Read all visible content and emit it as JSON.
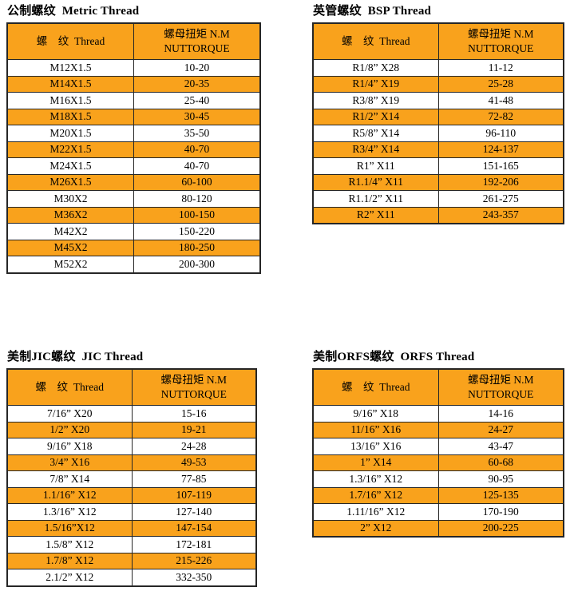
{
  "colors": {
    "row_highlight": "#F9A21C",
    "header_background": "#F9A21C",
    "border": "#262626",
    "text": "#000000",
    "page_background": "#ffffff"
  },
  "tables": [
    {
      "id": "metric",
      "title": "公制螺纹  Metric Thread",
      "columns": {
        "thread": "螺　纹  Thread",
        "torque_line1": "螺母扭矩 N.M",
        "torque_line2": "NUTTORQUE"
      },
      "rows": [
        [
          "M12X1.5",
          "10-20"
        ],
        [
          "M14X1.5",
          "20-35"
        ],
        [
          "M16X1.5",
          "25-40"
        ],
        [
          "M18X1.5",
          "30-45"
        ],
        [
          "M20X1.5",
          "35-50"
        ],
        [
          "M22X1.5",
          "40-70"
        ],
        [
          "M24X1.5",
          "40-70"
        ],
        [
          "M26X1.5",
          "60-100"
        ],
        [
          "M30X2",
          "80-120"
        ],
        [
          "M36X2",
          "100-150"
        ],
        [
          "M42X2",
          "150-220"
        ],
        [
          "M45X2",
          "180-250"
        ],
        [
          "M52X2",
          "200-300"
        ]
      ]
    },
    {
      "id": "bsp",
      "title": "英管螺纹  BSP Thread",
      "columns": {
        "thread": "螺　纹  Thread",
        "torque_line1": "螺母扭矩 N.M",
        "torque_line2": "NUTTORQUE"
      },
      "rows": [
        [
          "R1/8” X28",
          "11-12"
        ],
        [
          "R1/4” X19",
          "25-28"
        ],
        [
          "R3/8” X19",
          "41-48"
        ],
        [
          "R1/2” X14",
          "72-82"
        ],
        [
          "R5/8” X14",
          "96-110"
        ],
        [
          "R3/4” X14",
          "124-137"
        ],
        [
          "R1” X11",
          "151-165"
        ],
        [
          "R1.1/4” X11",
          "192-206"
        ],
        [
          "R1.1/2” X11",
          "261-275"
        ],
        [
          "R2” X11",
          "243-357"
        ]
      ]
    },
    {
      "id": "jic",
      "title": "美制JIC螺纹  JIC Thread",
      "columns": {
        "thread": "螺　纹  Thread",
        "torque_line1": "螺母扭矩 N.M",
        "torque_line2": "NUTTORQUE"
      },
      "rows": [
        [
          "7/16” X20",
          "15-16"
        ],
        [
          "1/2” X20",
          "19-21"
        ],
        [
          "9/16” X18",
          "24-28"
        ],
        [
          "3/4” X16",
          "49-53"
        ],
        [
          "7/8” X14",
          "77-85"
        ],
        [
          "1.1/16” X12",
          "107-119"
        ],
        [
          "1.3/16” X12",
          "127-140"
        ],
        [
          "1.5/16”X12",
          "147-154"
        ],
        [
          "1.5/8” X12",
          "172-181"
        ],
        [
          "1.7/8” X12",
          "215-226"
        ],
        [
          "2.1/2” X12",
          "332-350"
        ]
      ]
    },
    {
      "id": "orfs",
      "title": "美制ORFS螺纹  ORFS Thread",
      "columns": {
        "thread": "螺　纹  Thread",
        "torque_line1": "螺母扭矩 N.M",
        "torque_line2": "NUTTORQUE"
      },
      "rows": [
        [
          "9/16” X18",
          "14-16"
        ],
        [
          "11/16” X16",
          "24-27"
        ],
        [
          "13/16” X16",
          "43-47"
        ],
        [
          "1” X14",
          "60-68"
        ],
        [
          "1.3/16” X12",
          "90-95"
        ],
        [
          "1.7/16” X12",
          "125-135"
        ],
        [
          "1.11/16” X12",
          "170-190"
        ],
        [
          "2” X12",
          "200-225"
        ]
      ]
    }
  ]
}
